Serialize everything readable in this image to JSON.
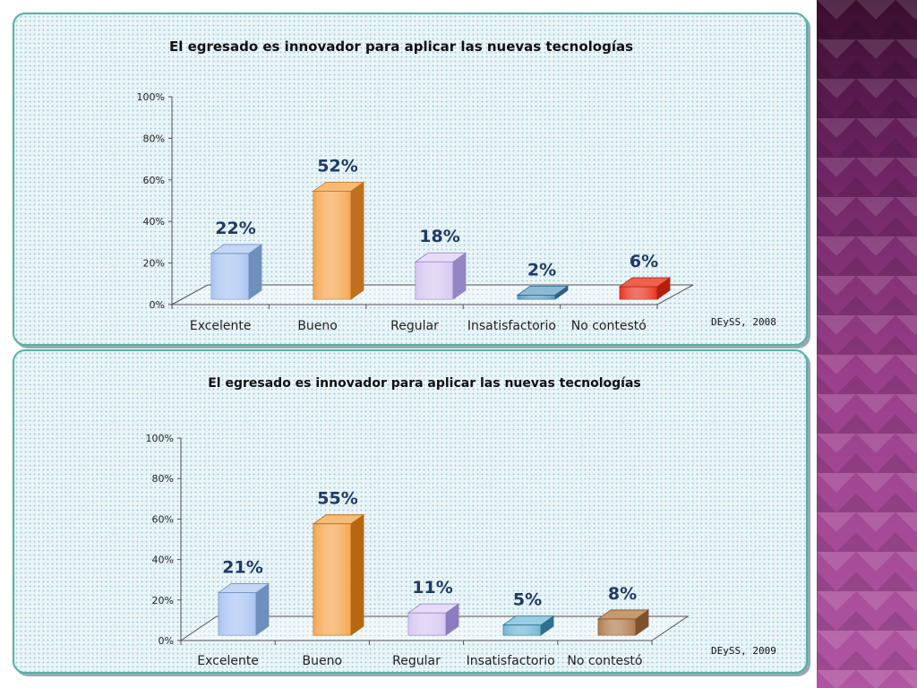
{
  "chart_data": [
    {
      "type": "bar",
      "title": "El egresado es innovador para aplicar las nuevas tecnologías",
      "categories": [
        "Excelente",
        "Bueno",
        "Regular",
        "Insatisfactorio",
        "No contestó"
      ],
      "values": [
        22,
        52,
        18,
        2,
        6
      ],
      "value_labels": [
        "22%",
        "52%",
        "18%",
        "2%",
        "6%"
      ],
      "y_ticks": [
        "0%",
        "20%",
        "40%",
        "60%",
        "80%",
        "100%"
      ],
      "ylim": [
        0,
        100
      ],
      "grid": false,
      "legend": "none",
      "source_note": "DEySS, 2008",
      "bar_colors": [
        {
          "front": "#a9c4f2",
          "side": "#6f8fbd",
          "top": "#c4d6f5"
        },
        {
          "front": "#f5a54e",
          "side": "#c06f1e",
          "top": "#f7bb77"
        },
        {
          "front": "#d6c7f2",
          "side": "#9485c4",
          "top": "#e6dcf7"
        },
        {
          "front": "#5a9ac4",
          "side": "#2c5f86",
          "top": "#8cbad6"
        },
        {
          "front": "#e8321e",
          "side": "#b3200f",
          "top": "#f0604c"
        }
      ]
    },
    {
      "type": "bar",
      "title": "El egresado es innovador para aplicar las nuevas tecnologías",
      "categories": [
        "Excelente",
        "Bueno",
        "Regular",
        "Insatisfactorio",
        "No contestó"
      ],
      "values": [
        21,
        55,
        11,
        5,
        8
      ],
      "value_labels": [
        "21%",
        "55%",
        "11%",
        "5%",
        "8%"
      ],
      "y_ticks": [
        "0%",
        "20%",
        "40%",
        "60%",
        "80%",
        "100%"
      ],
      "ylim": [
        0,
        100
      ],
      "grid": false,
      "legend": "none",
      "source_note": "DEySS, 2009",
      "bar_colors": [
        {
          "front": "#a9c4f2",
          "side": "#6f8fbd",
          "top": "#c4d6f5"
        },
        {
          "front": "#f5a54e",
          "side": "#b5680f",
          "top": "#f7bb77"
        },
        {
          "front": "#d6c7f2",
          "side": "#8c7cc0",
          "top": "#e6dcf7"
        },
        {
          "front": "#6fb6d6",
          "side": "#2f6f8f",
          "top": "#96cde3"
        },
        {
          "front": "#b07a4c",
          "side": "#7e5230",
          "top": "#c9996e"
        }
      ]
    }
  ]
}
